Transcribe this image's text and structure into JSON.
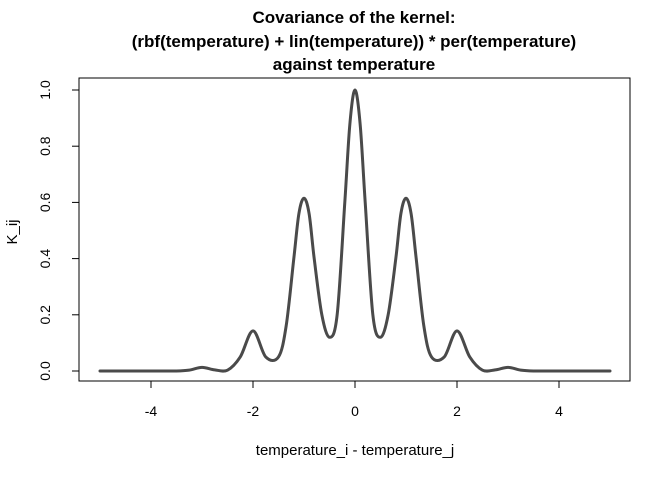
{
  "chart_data": {
    "type": "line",
    "title": [
      "Covariance of the kernel:",
      "(rbf(temperature) + lin(temperature)) * per(temperature)",
      "against temperature"
    ],
    "xlabel": "temperature_i - temperature_j",
    "ylabel": "K_ij",
    "xlim": [
      -5,
      5
    ],
    "ylim": [
      0,
      1
    ],
    "x_ticks": [
      -4,
      -2,
      0,
      2,
      4
    ],
    "x_tick_labels": [
      "-4",
      "-2",
      "0",
      "2",
      "4"
    ],
    "y_ticks": [
      0,
      0.2,
      0.4,
      0.6,
      0.8,
      1
    ],
    "y_tick_labels": [
      "0.0",
      "0.2",
      "0.4",
      "0.6",
      "0.8",
      "1.0"
    ],
    "grid": false,
    "line_color": "#4a4a4a",
    "series": [
      {
        "x": [
          -5,
          -4.5,
          -4,
          -3.5,
          -3.25,
          -3,
          -2.75,
          -2.5,
          -2.25,
          -2,
          -1.75,
          -1.5,
          -1.35,
          -1.2,
          -1.1,
          -1,
          -0.9,
          -0.8,
          -0.65,
          -0.5,
          -0.35,
          -0.2,
          -0.1,
          0,
          0.1,
          0.2,
          0.35,
          0.5,
          0.65,
          0.8,
          0.9,
          1,
          1.1,
          1.2,
          1.35,
          1.5,
          1.75,
          2,
          2.25,
          2.5,
          2.75,
          3,
          3.25,
          3.5,
          4,
          4.5,
          5
        ],
        "y": [
          0,
          0,
          0,
          0,
          0.003,
          0.013,
          0.004,
          0.003,
          0.05,
          0.143,
          0.05,
          0.05,
          0.16,
          0.4,
          0.56,
          0.615,
          0.56,
          0.4,
          0.2,
          0.12,
          0.2,
          0.6,
          0.88,
          1,
          0.88,
          0.6,
          0.2,
          0.12,
          0.2,
          0.4,
          0.56,
          0.615,
          0.56,
          0.4,
          0.16,
          0.05,
          0.05,
          0.143,
          0.05,
          0.003,
          0.004,
          0.013,
          0.003,
          0,
          0,
          0,
          0
        ]
      }
    ]
  }
}
